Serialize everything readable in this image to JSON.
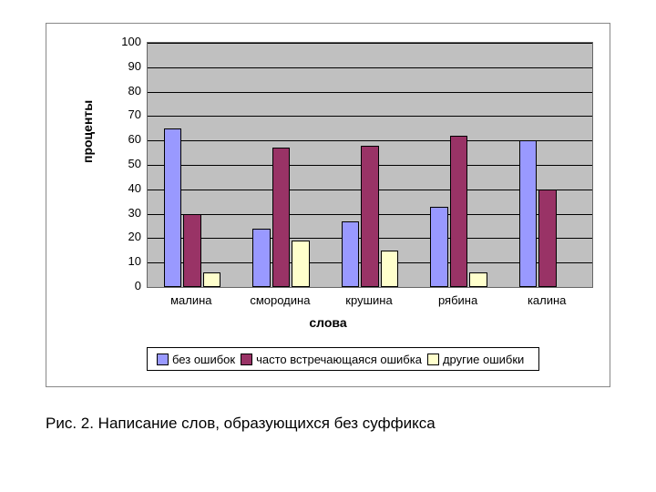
{
  "chart": {
    "type": "bar",
    "categories": [
      "малина",
      "смородина",
      "крушина",
      "рябина",
      "калина"
    ],
    "series": [
      {
        "name": "без ошибок",
        "color": "#9999ff",
        "values": [
          65,
          24,
          27,
          33,
          60
        ]
      },
      {
        "name": "часто встречающаяся ошибка",
        "color": "#993366",
        "values": [
          30,
          57,
          58,
          62,
          40
        ]
      },
      {
        "name": "другие ошибки",
        "color": "#ffffcc",
        "values": [
          6,
          19,
          15,
          6,
          0
        ]
      }
    ],
    "ylim": [
      0,
      100
    ],
    "ytick_step": 10,
    "ytick_labels": [
      "0",
      "10",
      "20",
      "30",
      "40",
      "50",
      "60",
      "70",
      "80",
      "90",
      "100"
    ],
    "y_axis_title": "проценты",
    "x_axis_title": "слова",
    "plot_background": "#c0c0c0",
    "outer_background": "#ffffff",
    "gridline_color": "#000000",
    "bar_border_color": "#000000",
    "font_family": "Arial",
    "label_fontsize": 13,
    "axis_title_fontsize": 14
  },
  "caption": "Рис. 2. Написание слов, образующихся без суффикса"
}
